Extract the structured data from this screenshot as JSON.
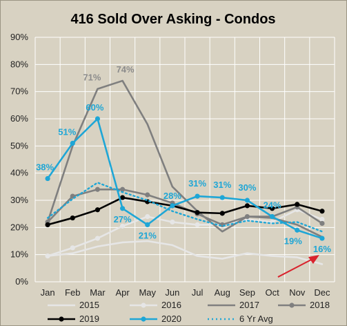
{
  "chart_data": {
    "type": "line",
    "title": "416 Sold Over Asking - Condos",
    "xlabel": "",
    "ylabel": "",
    "categories": [
      "Jan",
      "Feb",
      "Mar",
      "Apr",
      "May",
      "Jun",
      "Jul",
      "Aug",
      "Sep",
      "Oct",
      "Nov",
      "Dec"
    ],
    "ylim": [
      0,
      90
    ],
    "yticks": [
      0,
      10,
      20,
      30,
      40,
      50,
      60,
      70,
      80,
      90
    ],
    "ytick_labels": [
      "0%",
      "10%",
      "20%",
      "30%",
      "40%",
      "50%",
      "60%",
      "70%",
      "80%",
      "90%"
    ],
    "grid": "horizontal and vertical",
    "legend_position": "bottom",
    "series": [
      {
        "name": "2015",
        "color": "#e6e6e6",
        "style": "solid",
        "marker": "none",
        "values": [
          9.5,
          10.5,
          13,
          14.5,
          15,
          13.5,
          9.5,
          8.5,
          10.5,
          9.5,
          9,
          6.5
        ]
      },
      {
        "name": "2016",
        "color": "#e6e6e6",
        "style": "solid",
        "marker": "circle",
        "values": [
          9.5,
          12.5,
          16,
          20.5,
          24,
          22,
          21,
          21,
          23,
          22,
          26.5,
          23
        ]
      },
      {
        "name": "2017",
        "color": "#7f7f7f",
        "style": "solid",
        "marker": "none",
        "values": [
          22,
          50,
          71,
          74,
          58,
          35,
          26,
          18.5,
          24,
          23.5,
          21,
          16.5
        ]
      },
      {
        "name": "2018",
        "color": "#7f7f7f",
        "style": "solid",
        "marker": "circle",
        "values": [
          22,
          31.5,
          34,
          34,
          32,
          29,
          25,
          21,
          24,
          24,
          27.5,
          21.5
        ]
      },
      {
        "name": "2019",
        "color": "#000000",
        "style": "solid",
        "marker": "circle",
        "values": [
          21,
          23.5,
          26.5,
          31,
          29.5,
          28,
          25.5,
          25.2,
          28,
          27,
          28.5,
          26
        ]
      },
      {
        "name": "2020",
        "color": "#1ea6d6",
        "style": "solid",
        "marker": "circle",
        "values": [
          38,
          51,
          60,
          27,
          21,
          28,
          31.5,
          31,
          30,
          24,
          19,
          16
        ]
      },
      {
        "name": "6 Yr Avg",
        "color": "#1ea6d6",
        "style": "dotted",
        "marker": "none",
        "values": [
          23.5,
          30.5,
          36.5,
          33,
          30,
          26,
          23,
          20.5,
          22.5,
          21.5,
          22,
          18.5
        ]
      }
    ],
    "data_labels": [
      {
        "series": "2017",
        "index": 2,
        "text": "71%",
        "color": "#8c8c8c"
      },
      {
        "series": "2017",
        "index": 3,
        "text": "74%",
        "color": "#8c8c8c"
      },
      {
        "series": "2020",
        "index": 0,
        "text": "38%",
        "color": "#1ea6d6"
      },
      {
        "series": "2020",
        "index": 1,
        "text": "51%",
        "color": "#1ea6d6"
      },
      {
        "series": "2020",
        "index": 2,
        "text": "60%",
        "color": "#1ea6d6"
      },
      {
        "series": "2020",
        "index": 3,
        "text": "27%",
        "color": "#1ea6d6"
      },
      {
        "series": "2020",
        "index": 4,
        "text": "21%",
        "color": "#1ea6d6"
      },
      {
        "series": "2020",
        "index": 5,
        "text": "28%",
        "color": "#1ea6d6"
      },
      {
        "series": "2020",
        "index": 6,
        "text": "31%",
        "color": "#1ea6d6"
      },
      {
        "series": "2020",
        "index": 7,
        "text": "31%",
        "color": "#1ea6d6"
      },
      {
        "series": "2020",
        "index": 8,
        "text": "30%",
        "color": "#1ea6d6"
      },
      {
        "series": "2020",
        "index": 9,
        "text": "24%",
        "color": "#1ea6d6"
      },
      {
        "series": "2020",
        "index": 10,
        "text": "19%",
        "color": "#1ea6d6"
      },
      {
        "series": "2020",
        "index": 11,
        "text": "16%",
        "color": "#1ea6d6"
      }
    ],
    "annotation": {
      "type": "arrow",
      "color": "#d9232d",
      "points_to": {
        "series": "2020",
        "index": 11
      }
    }
  }
}
